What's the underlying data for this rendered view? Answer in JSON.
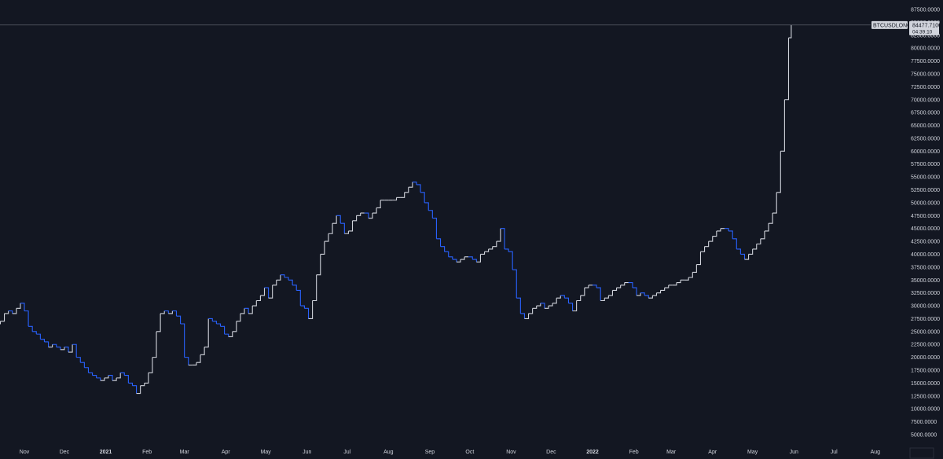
{
  "chart_data": {
    "type": "line",
    "symbol": "BTCUSDLONGS",
    "last_value": "84477.7100",
    "countdown": "04:39:10",
    "y_ticks": [
      "87500.0000",
      "85000.0000",
      "82500.0000",
      "80000.0000",
      "77500.0000",
      "75000.0000",
      "72500.0000",
      "70000.0000",
      "67500.0000",
      "65000.0000",
      "62500.0000",
      "60000.0000",
      "57500.0000",
      "55000.0000",
      "52500.0000",
      "50000.0000",
      "47500.0000",
      "45000.0000",
      "42500.0000",
      "40000.0000",
      "37500.0000",
      "35000.0000",
      "32500.0000",
      "30000.0000",
      "27500.0000",
      "25000.0000",
      "22500.0000",
      "20000.0000",
      "17500.0000",
      "15000.0000",
      "12500.0000",
      "10000.0000",
      "7500.0000",
      "5000.0000"
    ],
    "y_tick_values": [
      87500,
      85000,
      82500,
      80000,
      77500,
      75000,
      72500,
      70000,
      67500,
      65000,
      62500,
      60000,
      57500,
      55000,
      52500,
      50000,
      47500,
      45000,
      42500,
      40000,
      37500,
      35000,
      32500,
      30000,
      27500,
      25000,
      22500,
      20000,
      17500,
      15000,
      12500,
      10000,
      7500,
      5000
    ],
    "ylim": [
      2000,
      88500
    ],
    "x_ticks": [
      "Nov",
      "Dec",
      "2021",
      "Feb",
      "Mar",
      "Apr",
      "May",
      "Jun",
      "Jul",
      "Aug",
      "Sep",
      "Oct",
      "Nov",
      "Dec",
      "2022",
      "Feb",
      "Mar",
      "Apr",
      "May",
      "Jun",
      "Jul",
      "Aug"
    ],
    "x_tick_bold": [
      false,
      false,
      true,
      false,
      false,
      false,
      false,
      false,
      false,
      false,
      false,
      false,
      false,
      false,
      true,
      false,
      false,
      false,
      false,
      false,
      false,
      false
    ],
    "x_tick_dates": [
      "2020-11-01",
      "2020-12-01",
      "2021-01-01",
      "2021-02-01",
      "2021-03-01",
      "2021-04-01",
      "2021-05-01",
      "2021-06-01",
      "2021-07-01",
      "2021-08-01",
      "2021-09-01",
      "2021-10-01",
      "2021-11-01",
      "2021-12-01",
      "2022-01-01",
      "2022-02-01",
      "2022-03-01",
      "2022-04-01",
      "2022-05-01",
      "2022-06-01",
      "2022-07-01",
      "2022-08-01"
    ],
    "series": [
      {
        "points": [
          [
            "2020-10-11",
            26500
          ],
          [
            "2020-10-14",
            27000
          ],
          [
            "2020-10-17",
            28500
          ],
          [
            "2020-10-20",
            29000
          ],
          [
            "2020-10-23",
            28500
          ],
          [
            "2020-10-26",
            29500
          ],
          [
            "2020-10-29",
            30500
          ],
          [
            "2020-11-01",
            29000
          ],
          [
            "2020-11-04",
            26000
          ],
          [
            "2020-11-07",
            25000
          ],
          [
            "2020-11-10",
            24500
          ],
          [
            "2020-11-13",
            23500
          ],
          [
            "2020-11-16",
            23000
          ],
          [
            "2020-11-19",
            22000
          ],
          [
            "2020-11-22",
            22500
          ],
          [
            "2020-11-25",
            22000
          ],
          [
            "2020-11-28",
            21500
          ],
          [
            "2020-12-01",
            22000
          ],
          [
            "2020-12-04",
            21000
          ],
          [
            "2020-12-07",
            22500
          ],
          [
            "2020-12-10",
            20000
          ],
          [
            "2020-12-13",
            19000
          ],
          [
            "2020-12-16",
            18000
          ],
          [
            "2020-12-19",
            17000
          ],
          [
            "2020-12-22",
            16500
          ],
          [
            "2020-12-25",
            16000
          ],
          [
            "2020-12-28",
            15500
          ],
          [
            "2020-12-31",
            16000
          ],
          [
            "2021-01-03",
            16500
          ],
          [
            "2021-01-06",
            15500
          ],
          [
            "2021-01-09",
            16000
          ],
          [
            "2021-01-12",
            17000
          ],
          [
            "2021-01-15",
            16500
          ],
          [
            "2021-01-18",
            15000
          ],
          [
            "2021-01-21",
            14500
          ],
          [
            "2021-01-24",
            13000
          ],
          [
            "2021-01-27",
            14500
          ],
          [
            "2021-01-30",
            15000
          ],
          [
            "2021-02-02",
            17000
          ],
          [
            "2021-02-05",
            20000
          ],
          [
            "2021-02-08",
            25000
          ],
          [
            "2021-02-11",
            28500
          ],
          [
            "2021-02-14",
            29000
          ],
          [
            "2021-02-17",
            28500
          ],
          [
            "2021-02-20",
            29000
          ],
          [
            "2021-02-23",
            28000
          ],
          [
            "2021-02-26",
            26500
          ],
          [
            "2021-03-01",
            20000
          ],
          [
            "2021-03-04",
            18500
          ],
          [
            "2021-03-07",
            18500
          ],
          [
            "2021-03-10",
            19000
          ],
          [
            "2021-03-13",
            20500
          ],
          [
            "2021-03-16",
            22000
          ],
          [
            "2021-03-19",
            27500
          ],
          [
            "2021-03-22",
            27000
          ],
          [
            "2021-03-25",
            26500
          ],
          [
            "2021-03-28",
            26000
          ],
          [
            "2021-03-31",
            24500
          ],
          [
            "2021-04-03",
            24000
          ],
          [
            "2021-04-06",
            25000
          ],
          [
            "2021-04-09",
            27000
          ],
          [
            "2021-04-12",
            28500
          ],
          [
            "2021-04-15",
            29500
          ],
          [
            "2021-04-18",
            28500
          ],
          [
            "2021-04-21",
            30000
          ],
          [
            "2021-04-24",
            31000
          ],
          [
            "2021-04-27",
            32000
          ],
          [
            "2021-04-30",
            33500
          ],
          [
            "2021-05-03",
            31500
          ],
          [
            "2021-05-06",
            34000
          ],
          [
            "2021-05-09",
            35000
          ],
          [
            "2021-05-12",
            36000
          ],
          [
            "2021-05-15",
            35500
          ],
          [
            "2021-05-18",
            35000
          ],
          [
            "2021-05-21",
            34000
          ],
          [
            "2021-05-24",
            33000
          ],
          [
            "2021-05-27",
            30000
          ],
          [
            "2021-05-30",
            29500
          ],
          [
            "2021-06-02",
            27500
          ],
          [
            "2021-06-05",
            31000
          ],
          [
            "2021-06-08",
            36000
          ],
          [
            "2021-06-11",
            40000
          ],
          [
            "2021-06-14",
            42500
          ],
          [
            "2021-06-17",
            44000
          ],
          [
            "2021-06-20",
            46000
          ],
          [
            "2021-06-23",
            47500
          ],
          [
            "2021-06-26",
            46000
          ],
          [
            "2021-06-29",
            44000
          ],
          [
            "2021-07-02",
            44500
          ],
          [
            "2021-07-05",
            46500
          ],
          [
            "2021-07-08",
            47500
          ],
          [
            "2021-07-11",
            48000
          ],
          [
            "2021-07-14",
            48000
          ],
          [
            "2021-07-17",
            47000
          ],
          [
            "2021-07-20",
            48000
          ],
          [
            "2021-07-23",
            49000
          ],
          [
            "2021-07-26",
            50500
          ],
          [
            "2021-07-29",
            50500
          ],
          [
            "2021-08-01",
            50500
          ],
          [
            "2021-08-04",
            50500
          ],
          [
            "2021-08-07",
            51000
          ],
          [
            "2021-08-10",
            51000
          ],
          [
            "2021-08-13",
            52000
          ],
          [
            "2021-08-16",
            53000
          ],
          [
            "2021-08-19",
            54000
          ],
          [
            "2021-08-22",
            53500
          ],
          [
            "2021-08-25",
            52000
          ],
          [
            "2021-08-28",
            50000
          ],
          [
            "2021-08-31",
            48500
          ],
          [
            "2021-09-03",
            47000
          ],
          [
            "2021-09-06",
            43000
          ],
          [
            "2021-09-09",
            41500
          ],
          [
            "2021-09-12",
            40500
          ],
          [
            "2021-09-15",
            39500
          ],
          [
            "2021-09-18",
            39000
          ],
          [
            "2021-09-21",
            38500
          ],
          [
            "2021-09-24",
            39000
          ],
          [
            "2021-09-27",
            39500
          ],
          [
            "2021-09-30",
            39500
          ],
          [
            "2021-10-03",
            39000
          ],
          [
            "2021-10-06",
            38500
          ],
          [
            "2021-10-09",
            40000
          ],
          [
            "2021-10-12",
            40500
          ],
          [
            "2021-10-15",
            41000
          ],
          [
            "2021-10-18",
            41500
          ],
          [
            "2021-10-21",
            42500
          ],
          [
            "2021-10-24",
            45000
          ],
          [
            "2021-10-27",
            41000
          ],
          [
            "2021-10-30",
            40500
          ],
          [
            "2021-11-02",
            37000
          ],
          [
            "2021-11-05",
            31500
          ],
          [
            "2021-11-08",
            28500
          ],
          [
            "2021-11-11",
            27500
          ],
          [
            "2021-11-14",
            28500
          ],
          [
            "2021-11-17",
            29500
          ],
          [
            "2021-11-20",
            30000
          ],
          [
            "2021-11-23",
            30500
          ],
          [
            "2021-11-26",
            29500
          ],
          [
            "2021-11-29",
            30000
          ],
          [
            "2021-12-02",
            30500
          ],
          [
            "2021-12-05",
            31500
          ],
          [
            "2021-12-08",
            32000
          ],
          [
            "2021-12-11",
            31500
          ],
          [
            "2021-12-14",
            30500
          ],
          [
            "2021-12-17",
            29000
          ],
          [
            "2021-12-20",
            31000
          ],
          [
            "2021-12-23",
            32000
          ],
          [
            "2021-12-26",
            33500
          ],
          [
            "2021-12-29",
            34000
          ],
          [
            "2022-01-01",
            34000
          ],
          [
            "2022-01-04",
            33500
          ],
          [
            "2022-01-07",
            31000
          ],
          [
            "2022-01-10",
            31500
          ],
          [
            "2022-01-13",
            32000
          ],
          [
            "2022-01-16",
            33000
          ],
          [
            "2022-01-19",
            33500
          ],
          [
            "2022-01-22",
            34000
          ],
          [
            "2022-01-25",
            34500
          ],
          [
            "2022-01-28",
            34500
          ],
          [
            "2022-01-31",
            33500
          ],
          [
            "2022-02-03",
            32000
          ],
          [
            "2022-02-06",
            32500
          ],
          [
            "2022-02-09",
            32000
          ],
          [
            "2022-02-12",
            31500
          ],
          [
            "2022-02-15",
            32000
          ],
          [
            "2022-02-18",
            32500
          ],
          [
            "2022-02-21",
            33000
          ],
          [
            "2022-02-24",
            33500
          ],
          [
            "2022-02-27",
            34000
          ],
          [
            "2022-03-02",
            34000
          ],
          [
            "2022-03-05",
            34500
          ],
          [
            "2022-03-08",
            35000
          ],
          [
            "2022-03-11",
            35000
          ],
          [
            "2022-03-14",
            35500
          ],
          [
            "2022-03-17",
            36500
          ],
          [
            "2022-03-20",
            38000
          ],
          [
            "2022-03-23",
            40500
          ],
          [
            "2022-03-26",
            41500
          ],
          [
            "2022-03-29",
            42500
          ],
          [
            "2022-04-01",
            43500
          ],
          [
            "2022-04-04",
            44500
          ],
          [
            "2022-04-07",
            45000
          ],
          [
            "2022-04-10",
            45000
          ],
          [
            "2022-04-13",
            44500
          ],
          [
            "2022-04-16",
            43000
          ],
          [
            "2022-04-19",
            41000
          ],
          [
            "2022-04-22",
            40000
          ],
          [
            "2022-04-25",
            39000
          ],
          [
            "2022-04-28",
            40000
          ],
          [
            "2022-05-01",
            41000
          ],
          [
            "2022-05-04",
            42000
          ],
          [
            "2022-05-07",
            43000
          ],
          [
            "2022-05-10",
            44500
          ],
          [
            "2022-05-13",
            46000
          ],
          [
            "2022-05-16",
            48000
          ],
          [
            "2022-05-19",
            52000
          ],
          [
            "2022-05-22",
            60000
          ],
          [
            "2022-05-25",
            70000
          ],
          [
            "2022-05-28",
            82000
          ],
          [
            "2022-05-30",
            84478
          ]
        ]
      }
    ],
    "colors": {
      "background": "#131722",
      "line_up": "#d1d4dc",
      "line_down": "#2962ff",
      "crosshair": "#6a6d78",
      "label_bg": "#d1d4dc",
      "axis_text": "#d1d4dc"
    }
  }
}
